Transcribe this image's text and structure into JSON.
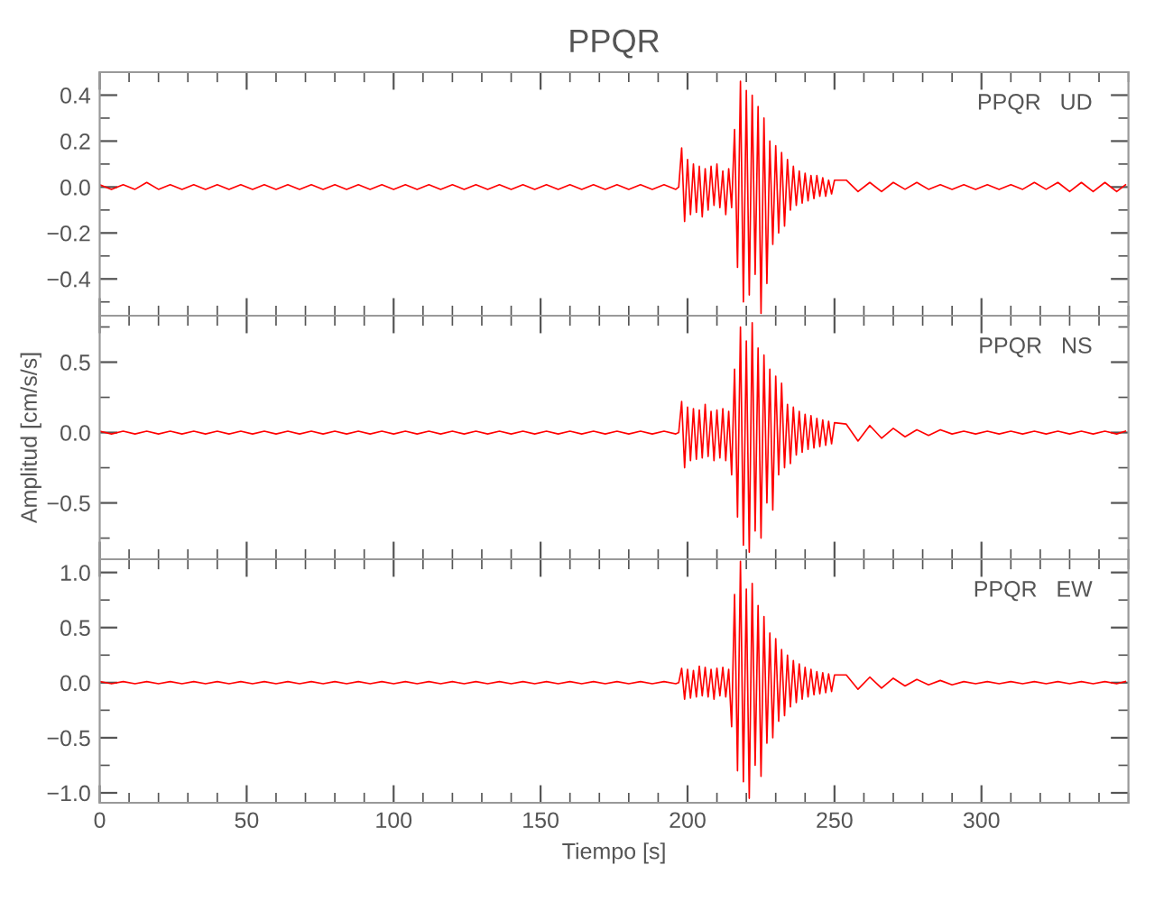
{
  "chart_data": [
    {
      "type": "line",
      "title": "PPQR",
      "annotations": [
        "PPQR   UD"
      ],
      "xlim": [
        0,
        350
      ],
      "xticks": [
        0,
        50,
        100,
        150,
        200,
        250,
        300
      ],
      "ylim": [
        -0.56,
        0.5
      ],
      "yticks": [
        {
          "value": -0.4,
          "label": "−0.4"
        },
        {
          "value": -0.2,
          "label": "−0.2"
        },
        {
          "value": 0,
          "label": "0.0"
        },
        0.2,
        0.4
      ],
      "tick_labels": "y",
      "grid": false,
      "legend": false,
      "series": [
        {
          "color": "#ff0000",
          "x": [
            0,
            4,
            8,
            12,
            16,
            20,
            24,
            28,
            32,
            36,
            40,
            44,
            48,
            52,
            56,
            60,
            64,
            68,
            72,
            76,
            80,
            84,
            88,
            92,
            96,
            100,
            104,
            108,
            112,
            116,
            120,
            124,
            128,
            132,
            136,
            140,
            144,
            148,
            152,
            156,
            160,
            164,
            168,
            172,
            176,
            180,
            184,
            188,
            192,
            196,
            197,
            198,
            199,
            200,
            201,
            202,
            203,
            204,
            205,
            206,
            207,
            208,
            209,
            210,
            211,
            212,
            213,
            214,
            215,
            216,
            217,
            218,
            219,
            220,
            221,
            222,
            223,
            224,
            225,
            226,
            227,
            228,
            229,
            230,
            231,
            232,
            233,
            234,
            235,
            236,
            237,
            238,
            239,
            240,
            241,
            242,
            243,
            244,
            245,
            246,
            247,
            248,
            249,
            250,
            254,
            258,
            262,
            266,
            270,
            274,
            278,
            282,
            286,
            290,
            294,
            298,
            302,
            306,
            310,
            314,
            318,
            322,
            326,
            330,
            334,
            338,
            342,
            346,
            349
          ],
          "values": [
            0.01,
            -0.01,
            0.01,
            -0.01,
            0.02,
            -0.01,
            0.01,
            -0.01,
            0.01,
            -0.01,
            0.01,
            -0.01,
            0.01,
            -0.01,
            0.01,
            -0.01,
            0.01,
            -0.01,
            0.01,
            -0.01,
            0.01,
            -0.01,
            0.01,
            -0.01,
            0.01,
            -0.01,
            0.01,
            -0.01,
            0.01,
            -0.01,
            0.01,
            -0.01,
            0.01,
            -0.01,
            0.01,
            -0.01,
            0.01,
            -0.01,
            0.01,
            -0.01,
            0.01,
            -0.01,
            0.01,
            -0.01,
            0.01,
            -0.01,
            0.01,
            -0.01,
            0.01,
            -0.01,
            0.0,
            0.17,
            -0.15,
            0.12,
            -0.12,
            0.1,
            -0.11,
            0.09,
            -0.13,
            0.08,
            -0.1,
            0.09,
            -0.08,
            0.1,
            -0.09,
            0.07,
            -0.12,
            0.08,
            -0.09,
            0.25,
            -0.35,
            0.46,
            -0.5,
            0.42,
            -0.47,
            0.4,
            -0.38,
            0.35,
            -0.55,
            0.3,
            -0.42,
            0.2,
            -0.25,
            0.18,
            -0.2,
            0.15,
            -0.17,
            0.12,
            -0.1,
            0.09,
            -0.08,
            0.07,
            -0.07,
            0.06,
            -0.06,
            0.05,
            -0.05,
            0.05,
            -0.04,
            0.04,
            -0.04,
            0.03,
            -0.03,
            0.03,
            0.03,
            -0.02,
            0.02,
            -0.02,
            0.02,
            -0.01,
            0.02,
            -0.01,
            0.01,
            -0.01,
            0.01,
            -0.01,
            0.01,
            -0.01,
            0.01,
            -0.01,
            0.02,
            -0.01,
            0.02,
            -0.02,
            0.02,
            -0.02,
            0.02,
            -0.02,
            0.01
          ]
        }
      ]
    },
    {
      "type": "line",
      "ylabel": "Amplitud [cm/s/s]",
      "annotations": [
        "PPQR   NS"
      ],
      "xlim": [
        0,
        350
      ],
      "xticks": [
        0,
        50,
        100,
        150,
        200,
        250,
        300
      ],
      "ylim": [
        -0.9,
        0.83
      ],
      "yticks": [
        {
          "value": -0.5,
          "label": "−0.5"
        },
        {
          "value": 0,
          "label": "0.0"
        },
        0.5
      ],
      "tick_labels": "y",
      "grid": false,
      "legend": false,
      "series": [
        {
          "color": "#ff0000",
          "x": [
            0,
            4,
            8,
            12,
            16,
            20,
            24,
            28,
            32,
            36,
            40,
            44,
            48,
            52,
            56,
            60,
            64,
            68,
            72,
            76,
            80,
            84,
            88,
            92,
            96,
            100,
            104,
            108,
            112,
            116,
            120,
            124,
            128,
            132,
            136,
            140,
            144,
            148,
            152,
            156,
            160,
            164,
            168,
            172,
            176,
            180,
            184,
            188,
            192,
            196,
            197,
            198,
            199,
            200,
            201,
            202,
            203,
            204,
            205,
            206,
            207,
            208,
            209,
            210,
            211,
            212,
            213,
            214,
            215,
            216,
            217,
            218,
            219,
            220,
            221,
            222,
            223,
            224,
            225,
            226,
            227,
            228,
            229,
            230,
            231,
            232,
            233,
            234,
            235,
            236,
            237,
            238,
            239,
            240,
            241,
            242,
            243,
            244,
            245,
            246,
            247,
            248,
            249,
            250,
            254,
            258,
            262,
            266,
            270,
            274,
            278,
            282,
            286,
            290,
            294,
            298,
            302,
            306,
            310,
            314,
            318,
            322,
            326,
            330,
            334,
            338,
            342,
            346,
            349
          ],
          "values": [
            0.01,
            -0.01,
            0.01,
            -0.01,
            0.01,
            -0.01,
            0.01,
            -0.01,
            0.01,
            -0.01,
            0.01,
            -0.01,
            0.01,
            -0.01,
            0.01,
            -0.01,
            0.01,
            -0.01,
            0.01,
            -0.01,
            0.01,
            -0.01,
            0.01,
            -0.01,
            0.01,
            -0.01,
            0.01,
            -0.01,
            0.01,
            -0.01,
            0.01,
            -0.01,
            0.01,
            -0.01,
            0.01,
            -0.01,
            0.01,
            -0.01,
            0.01,
            -0.01,
            0.01,
            -0.01,
            0.01,
            -0.01,
            0.01,
            -0.01,
            0.01,
            -0.01,
            0.01,
            -0.01,
            0.0,
            0.22,
            -0.25,
            0.18,
            -0.2,
            0.17,
            -0.19,
            0.16,
            -0.18,
            0.2,
            -0.17,
            0.15,
            -0.2,
            0.16,
            -0.18,
            0.17,
            -0.2,
            0.15,
            -0.3,
            0.45,
            -0.6,
            0.75,
            -0.8,
            0.65,
            -0.85,
            0.78,
            -0.7,
            0.6,
            -0.75,
            0.55,
            -0.5,
            0.45,
            -0.55,
            0.4,
            -0.3,
            0.35,
            -0.25,
            0.2,
            -0.22,
            0.18,
            -0.16,
            0.15,
            -0.14,
            0.13,
            -0.12,
            0.12,
            -0.11,
            0.1,
            -0.1,
            0.09,
            -0.09,
            0.08,
            -0.08,
            0.07,
            0.06,
            -0.06,
            0.05,
            -0.04,
            0.03,
            -0.03,
            0.02,
            -0.02,
            0.02,
            -0.01,
            0.01,
            -0.01,
            0.01,
            -0.01,
            0.01,
            -0.01,
            0.01,
            -0.01,
            0.01,
            -0.01,
            0.01,
            -0.01,
            0.01,
            -0.01,
            0.01
          ]
        }
      ]
    },
    {
      "type": "line",
      "xlabel": "Tiempo [s]",
      "annotations": [
        "PPQR   EW"
      ],
      "xlim": [
        0,
        350
      ],
      "xticks": [
        0,
        50,
        100,
        150,
        200,
        250,
        300
      ],
      "ylim": [
        -1.09,
        1.12
      ],
      "yticks": [
        {
          "value": -1,
          "label": "−1.0"
        },
        {
          "value": -0.5,
          "label": "−0.5"
        },
        {
          "value": 0,
          "label": "0.0"
        },
        0.5,
        {
          "value": 1,
          "label": "1.0"
        }
      ],
      "grid": false,
      "legend": false,
      "series": [
        {
          "color": "#ff0000",
          "x": [
            0,
            4,
            8,
            12,
            16,
            20,
            24,
            28,
            32,
            36,
            40,
            44,
            48,
            52,
            56,
            60,
            64,
            68,
            72,
            76,
            80,
            84,
            88,
            92,
            96,
            100,
            104,
            108,
            112,
            116,
            120,
            124,
            128,
            132,
            136,
            140,
            144,
            148,
            152,
            156,
            160,
            164,
            168,
            172,
            176,
            180,
            184,
            188,
            192,
            196,
            197,
            198,
            199,
            200,
            201,
            202,
            203,
            204,
            205,
            206,
            207,
            208,
            209,
            210,
            211,
            212,
            213,
            214,
            215,
            216,
            217,
            218,
            219,
            220,
            221,
            222,
            223,
            224,
            225,
            226,
            227,
            228,
            229,
            230,
            231,
            232,
            233,
            234,
            235,
            236,
            237,
            238,
            239,
            240,
            241,
            242,
            243,
            244,
            245,
            246,
            247,
            248,
            249,
            250,
            254,
            258,
            262,
            266,
            270,
            274,
            278,
            282,
            286,
            290,
            294,
            298,
            302,
            306,
            310,
            314,
            318,
            322,
            326,
            330,
            334,
            338,
            342,
            346,
            349
          ],
          "values": [
            0.01,
            -0.01,
            0.01,
            -0.01,
            0.01,
            -0.01,
            0.01,
            -0.01,
            0.01,
            -0.01,
            0.01,
            -0.01,
            0.01,
            -0.01,
            0.01,
            -0.01,
            0.01,
            -0.01,
            0.01,
            -0.01,
            0.01,
            -0.01,
            0.01,
            -0.01,
            0.01,
            -0.01,
            0.01,
            -0.01,
            0.01,
            -0.01,
            0.01,
            -0.01,
            0.01,
            -0.01,
            0.01,
            -0.01,
            0.01,
            -0.01,
            0.01,
            -0.01,
            0.01,
            -0.01,
            0.01,
            -0.01,
            0.01,
            -0.01,
            0.01,
            -0.01,
            0.01,
            -0.01,
            0.0,
            0.13,
            -0.15,
            0.12,
            -0.14,
            0.11,
            -0.13,
            0.15,
            -0.12,
            0.14,
            -0.13,
            0.12,
            -0.15,
            0.13,
            -0.12,
            0.14,
            -0.13,
            0.12,
            -0.4,
            0.8,
            -0.8,
            1.1,
            -0.9,
            0.85,
            -1.05,
            0.9,
            -0.75,
            0.7,
            -0.85,
            0.6,
            -0.55,
            0.45,
            -0.5,
            0.4,
            -0.35,
            0.3,
            -0.3,
            0.25,
            -0.22,
            0.2,
            -0.18,
            0.17,
            -0.15,
            0.14,
            -0.13,
            0.12,
            -0.11,
            0.1,
            -0.1,
            0.09,
            -0.09,
            0.08,
            -0.08,
            0.07,
            0.07,
            -0.06,
            0.05,
            -0.05,
            0.04,
            -0.03,
            0.03,
            -0.02,
            0.02,
            -0.02,
            0.01,
            -0.01,
            0.01,
            -0.01,
            0.01,
            -0.01,
            0.01,
            -0.01,
            0.01,
            -0.01,
            0.01,
            -0.01,
            0.01,
            -0.01,
            0.01
          ]
        }
      ]
    }
  ]
}
